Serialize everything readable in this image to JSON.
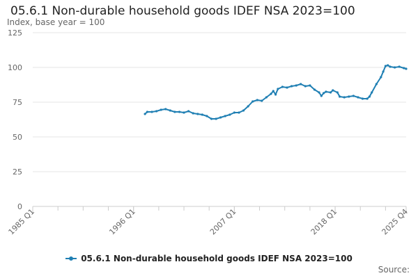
{
  "colors": {
    "series": "#1f7fb3",
    "grid": "#e6e6e6",
    "axis": "#cccccc",
    "tick_text": "#666666"
  },
  "chart_data": {
    "type": "line",
    "title": "05.6.1 Non-durable household goods IDEF NSA 2023=100",
    "ylabel": "Index, base year = 100",
    "xlabel": "",
    "ylim": [
      0,
      125
    ],
    "yticks": [
      0,
      25,
      50,
      75,
      100,
      125
    ],
    "xrange": [
      1985.0,
      2025.75
    ],
    "xticks": [
      {
        "label": "1985 Q1",
        "x": 1985.0
      },
      {
        "label": "1996 Q1",
        "x": 1996.0
      },
      {
        "label": "2007 Q1",
        "x": 2007.0
      },
      {
        "label": "2018 Q1",
        "x": 2018.0
      },
      {
        "label": "2025 Q4",
        "x": 2025.75
      }
    ],
    "grid": true,
    "legend_position": "bottom",
    "series": [
      {
        "name": "05.6.1 Non-durable household goods IDEF NSA 2023=100",
        "points": [
          [
            1997.25,
            66.5
          ],
          [
            1997.5,
            68.0
          ],
          [
            1998.0,
            68.0
          ],
          [
            1998.5,
            68.5
          ],
          [
            1999.0,
            69.5
          ],
          [
            1999.5,
            70.0
          ],
          [
            2000.0,
            69.0
          ],
          [
            2000.5,
            68.0
          ],
          [
            2001.0,
            68.0
          ],
          [
            2001.5,
            67.5
          ],
          [
            2002.0,
            68.5
          ],
          [
            2002.5,
            67.0
          ],
          [
            2003.0,
            66.5
          ],
          [
            2003.5,
            66.0
          ],
          [
            2004.0,
            65.0
          ],
          [
            2004.5,
            63.0
          ],
          [
            2005.0,
            63.0
          ],
          [
            2005.5,
            64.0
          ],
          [
            2006.0,
            65.0
          ],
          [
            2006.5,
            66.0
          ],
          [
            2007.0,
            67.5
          ],
          [
            2007.5,
            67.5
          ],
          [
            2008.0,
            69.0
          ],
          [
            2008.5,
            72.0
          ],
          [
            2009.0,
            75.5
          ],
          [
            2009.5,
            76.5
          ],
          [
            2010.0,
            76.0
          ],
          [
            2010.5,
            78.5
          ],
          [
            2011.0,
            81.0
          ],
          [
            2011.25,
            83.0
          ],
          [
            2011.5,
            80.5
          ],
          [
            2011.75,
            84.5
          ],
          [
            2012.25,
            86.0
          ],
          [
            2012.75,
            85.5
          ],
          [
            2013.25,
            86.5
          ],
          [
            2013.75,
            87.0
          ],
          [
            2014.25,
            88.0
          ],
          [
            2014.75,
            86.5
          ],
          [
            2015.25,
            87.0
          ],
          [
            2015.75,
            84.0
          ],
          [
            2016.25,
            82.0
          ],
          [
            2016.5,
            79.5
          ],
          [
            2016.75,
            81.5
          ],
          [
            2017.0,
            82.5
          ],
          [
            2017.5,
            82.0
          ],
          [
            2017.75,
            83.5
          ],
          [
            2018.25,
            82.0
          ],
          [
            2018.5,
            79.0
          ],
          [
            2019.0,
            78.5
          ],
          [
            2019.5,
            79.0
          ],
          [
            2020.0,
            79.5
          ],
          [
            2020.5,
            78.5
          ],
          [
            2021.0,
            77.5
          ],
          [
            2021.5,
            77.5
          ],
          [
            2021.75,
            79.0
          ],
          [
            2022.0,
            82.0
          ],
          [
            2022.5,
            88.0
          ],
          [
            2023.0,
            93.0
          ],
          [
            2023.25,
            97.0
          ],
          [
            2023.5,
            101.0
          ],
          [
            2023.75,
            101.5
          ],
          [
            2024.0,
            100.5
          ],
          [
            2024.5,
            100.0
          ],
          [
            2025.0,
            100.5
          ],
          [
            2025.5,
            99.5
          ],
          [
            2025.75,
            99.0
          ]
        ]
      }
    ]
  },
  "legend": {
    "label": "05.6.1 Non-durable household goods IDEF NSA 2023=100"
  },
  "footer": {
    "source_label": "Source:"
  }
}
